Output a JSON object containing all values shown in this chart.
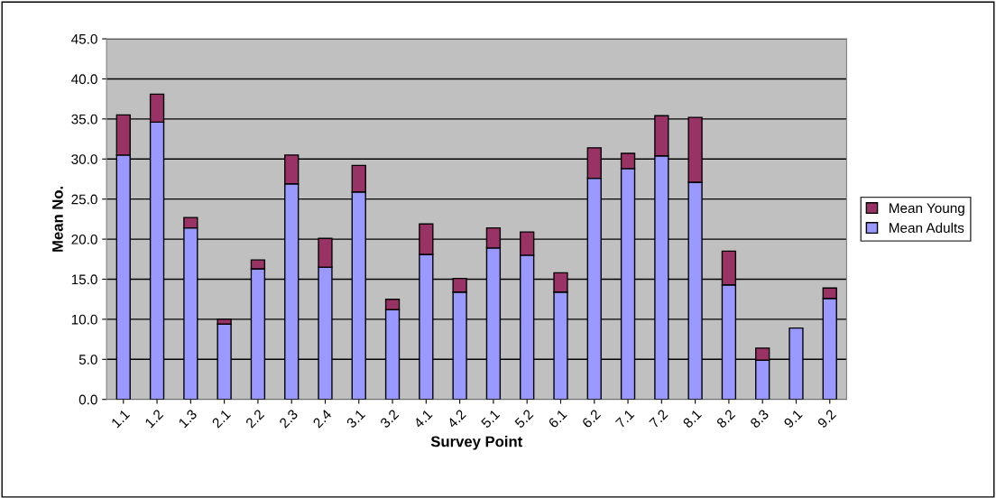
{
  "chart_data": {
    "type": "bar",
    "stacked": true,
    "xlabel": "Survey Point",
    "ylabel": "Mean No.",
    "categories": [
      "1.1",
      "1.2",
      "1.3",
      "2.1",
      "2.2",
      "2.3",
      "2.4",
      "3.1",
      "3.2",
      "4.1",
      "4.2",
      "5.1",
      "5.2",
      "6.1",
      "6.2",
      "7.1",
      "7.2",
      "8.1",
      "8.2",
      "8.3",
      "9.1",
      "9.2"
    ],
    "series": [
      {
        "name": "Mean Adults",
        "color": "#9999ff",
        "values": [
          30.5,
          34.6,
          21.4,
          9.4,
          16.3,
          26.9,
          16.5,
          25.9,
          11.2,
          18.1,
          13.4,
          18.9,
          18.0,
          13.4,
          27.6,
          28.8,
          30.4,
          27.1,
          14.3,
          4.9,
          8.9,
          12.6
        ]
      },
      {
        "name": "Mean Young",
        "color": "#993366",
        "values": [
          5.0,
          3.5,
          1.3,
          0.6,
          1.1,
          3.6,
          3.6,
          3.3,
          1.3,
          3.8,
          1.7,
          2.5,
          2.9,
          2.4,
          3.8,
          1.9,
          5.0,
          8.1,
          4.2,
          1.5,
          null,
          1.3
        ]
      }
    ],
    "ylim": [
      0,
      45
    ],
    "yticks": [
      {
        "value": 0,
        "label": "0.0"
      },
      {
        "value": 5,
        "label": "5.0"
      },
      {
        "value": 10,
        "label": "10.0"
      },
      {
        "value": 15,
        "label": "15.0"
      },
      {
        "value": 20,
        "label": "20.0"
      },
      {
        "value": 25,
        "label": "25.0"
      },
      {
        "value": 30,
        "label": "30.0"
      },
      {
        "value": 35,
        "label": "35.0"
      },
      {
        "value": 40,
        "label": "40.0"
      },
      {
        "value": 45,
        "label": "45.0"
      }
    ],
    "grid": "y",
    "legend": "right"
  }
}
